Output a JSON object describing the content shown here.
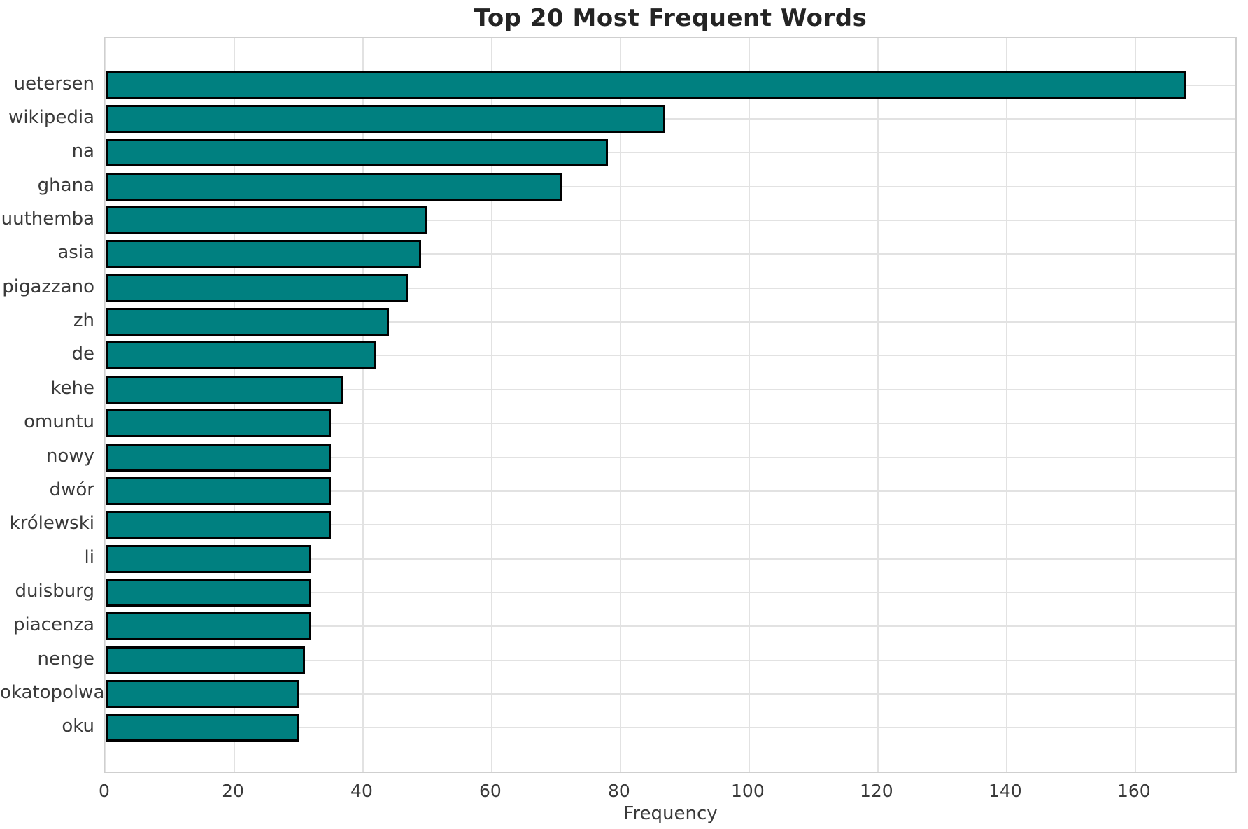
{
  "chart_data": {
    "type": "bar",
    "orientation": "horizontal",
    "title": "Top 20 Most Frequent Words",
    "xlabel": "Frequency",
    "ylabel": "",
    "categories": [
      "uetersen",
      "wikipedia",
      "na",
      "ghana",
      "uuthemba",
      "asia",
      "pigazzano",
      "zh",
      "de",
      "kehe",
      "omuntu",
      "nowy",
      "dwór",
      "królewski",
      "li",
      "duisburg",
      "piacenza",
      "nenge",
      "okatopolwa",
      "oku"
    ],
    "values": [
      168,
      87,
      78,
      71,
      50,
      49,
      47,
      44,
      42,
      37,
      35,
      35,
      35,
      35,
      32,
      32,
      32,
      31,
      30,
      30
    ],
    "xlim": [
      0,
      176
    ],
    "xticks": [
      0,
      20,
      40,
      60,
      80,
      100,
      120,
      140,
      160
    ],
    "grid": true,
    "legend_position": "none",
    "bar_color": "#008080",
    "bar_edge_color": "#000000"
  },
  "colors": {
    "background": "#ffffff",
    "grid": "#e2e2e2",
    "spine": "#cfcfcf",
    "title_text": "#242424",
    "tick_text": "#3a3a3a"
  }
}
